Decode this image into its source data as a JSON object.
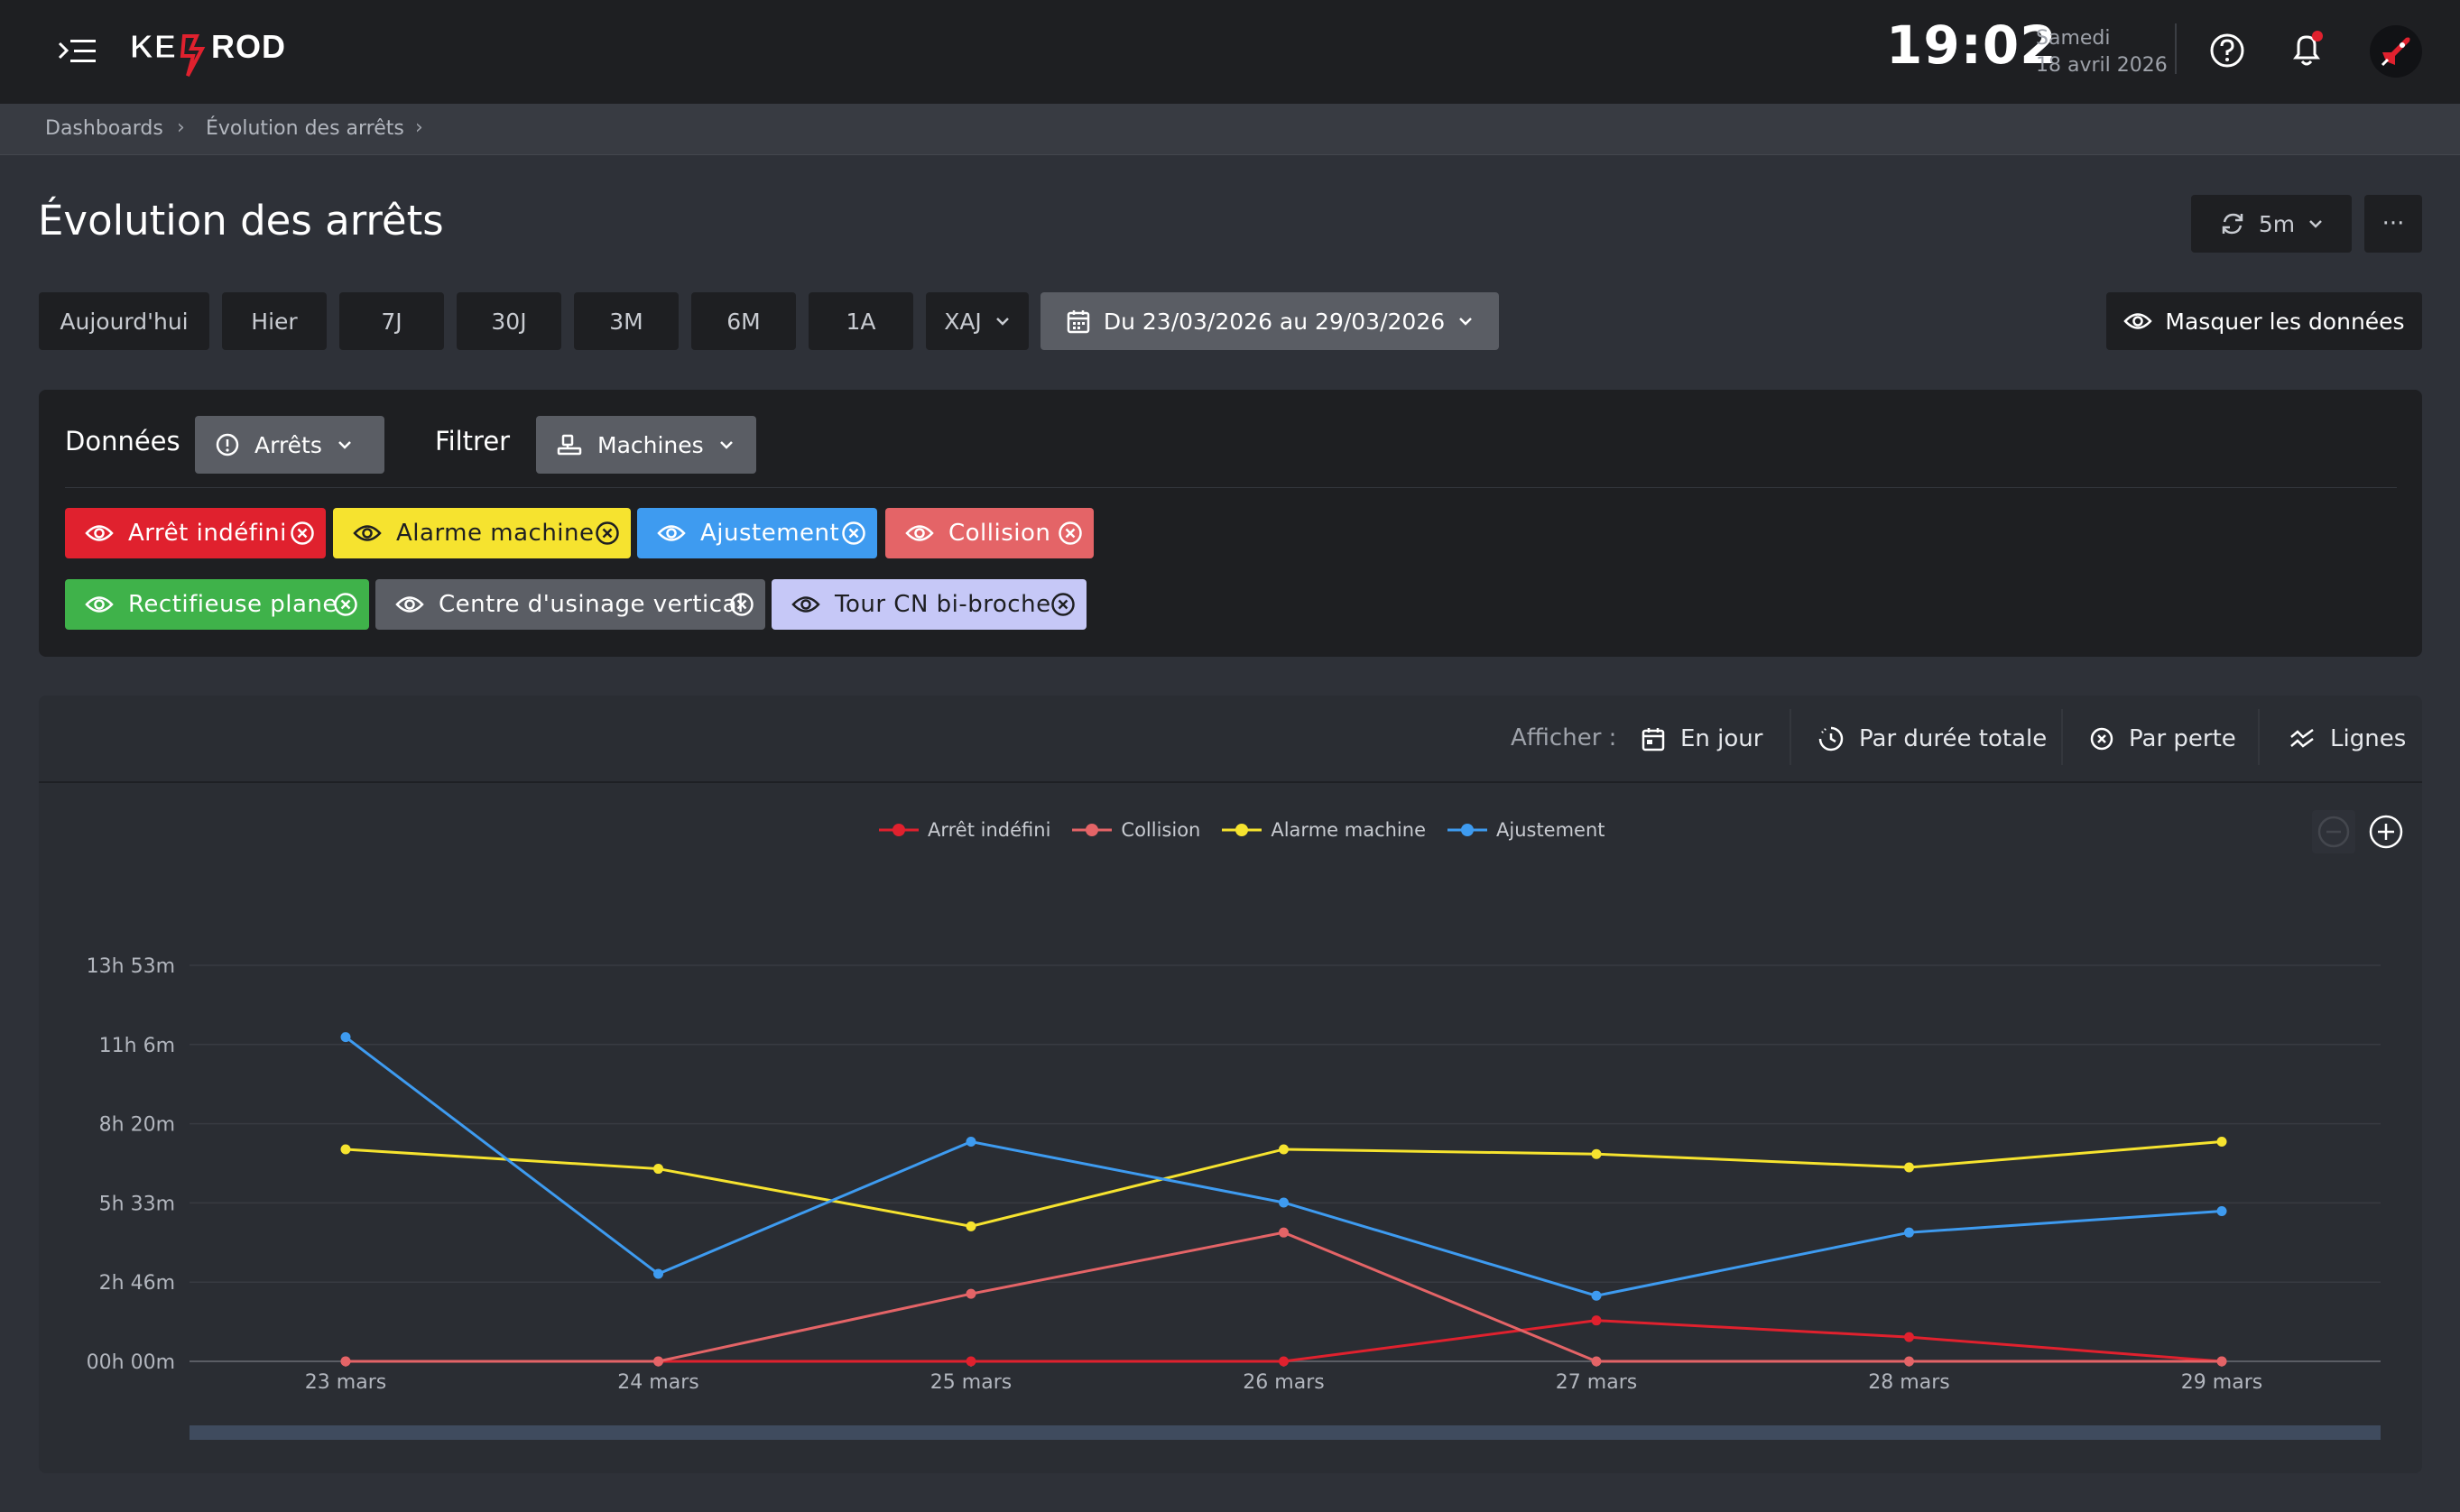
{
  "header": {
    "logo_text": "KEYPROD",
    "clock": "19:02",
    "weekday": "Samedi",
    "date": "18 avril 2026"
  },
  "breadcrumb": [
    "Dashboards",
    "Évolution des arrêts"
  ],
  "page": {
    "title": "Évolution des arrêts",
    "refresh_label": "5m",
    "more_label": "···"
  },
  "periods": [
    "Aujourd'hui",
    "Hier",
    "7J",
    "30J",
    "3M",
    "6M",
    "1A",
    "XAJ"
  ],
  "date_range": "Du 23/03/2026 au 29/03/2026",
  "hide_data_label": "Masquer les données",
  "filters": {
    "data_label": "Données",
    "data_select": "Arrêts",
    "filter_label": "Filtrer",
    "filter_select": "Machines",
    "tags": [
      {
        "label": "Arrêt indéfini",
        "color": "#e0212e",
        "text_color": "#ffffff"
      },
      {
        "label": "Alarme machine",
        "color": "#f6e32f",
        "text_color": "#1e1f22"
      },
      {
        "label": "Ajustement",
        "color": "#3e9bf0",
        "text_color": "#ffffff"
      },
      {
        "label": "Collision",
        "color": "#e46467",
        "text_color": "#ffffff"
      },
      {
        "label": "Rectifieuse plane",
        "color": "#3fb24a",
        "text_color": "#ffffff"
      },
      {
        "label": "Centre d'usinage vertical",
        "color": "#5a5d64",
        "text_color": "#ffffff"
      },
      {
        "label": "Tour CN bi-broche",
        "color": "#c6c8f7",
        "text_color": "#1e1f22"
      }
    ]
  },
  "display": {
    "label": "Afficher :",
    "options": [
      "En jour",
      "Par durée totale",
      "Par perte",
      "Lignes"
    ]
  },
  "chart_data": {
    "type": "line",
    "x": [
      "23 mars",
      "24 mars",
      "25 mars",
      "26 mars",
      "27 mars",
      "28 mars",
      "29 mars"
    ],
    "y_tick_labels": [
      "00h 00m",
      "2h 46m",
      "5h 33m",
      "8h 20m",
      "11h 6m",
      "13h 53m"
    ],
    "y_unit": "minutes",
    "ylim": [
      0,
      833
    ],
    "grid": true,
    "legend_position": "top-center",
    "series": [
      {
        "name": "Arrêt indéfini",
        "color": "#e0212e",
        "values": [
          0,
          0,
          0,
          0,
          86,
          51,
          0
        ]
      },
      {
        "name": "Collision",
        "color": "#e46467",
        "values": [
          0,
          0,
          142,
          271,
          0,
          0,
          0
        ]
      },
      {
        "name": "Alarme machine",
        "color": "#f6e32f",
        "values": [
          446,
          405,
          284,
          446,
          436,
          408,
          462
        ]
      },
      {
        "name": "Ajustement",
        "color": "#3e9bf0",
        "values": [
          682,
          184,
          462,
          334,
          138,
          271,
          316
        ]
      }
    ]
  }
}
